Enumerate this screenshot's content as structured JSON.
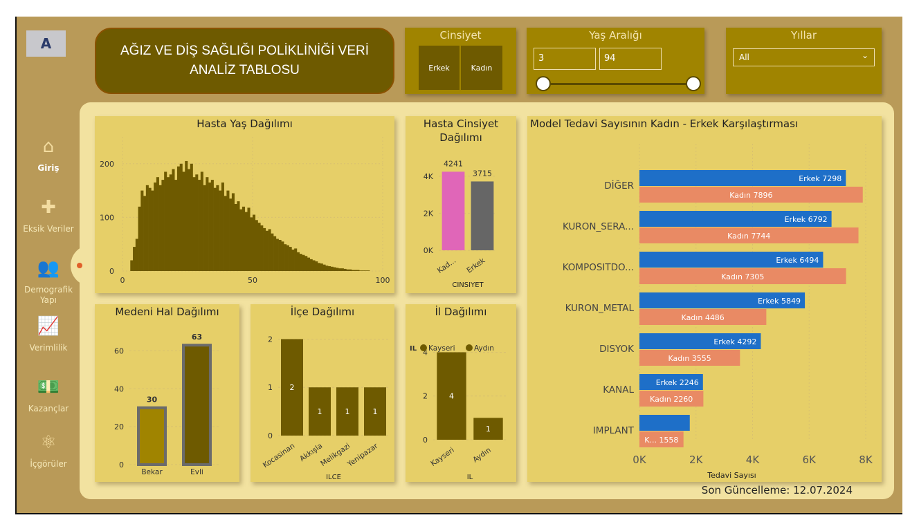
{
  "title": "AĞIZ VE DİŞ SAĞLIĞI POLİKLİNİĞİ VERİ ANALİZ TABLOSU",
  "logo_text": "A",
  "slicers": {
    "gender": {
      "title": "Cinsiyet",
      "options": [
        "Erkek",
        "Kadın"
      ]
    },
    "age": {
      "title": "Yaş Aralığı",
      "min": "3",
      "max": "94"
    },
    "years": {
      "title": "Yıllar",
      "value": "All"
    }
  },
  "nav": [
    {
      "label": "Giriş",
      "icon": "home-icon"
    },
    {
      "label": "Eksik Veriler",
      "icon": "puzzle-icon"
    },
    {
      "label": "Demografik Yapı",
      "icon": "people-icon"
    },
    {
      "label": "Verimlilik",
      "icon": "trend-chart-icon"
    },
    {
      "label": "Kazançlar",
      "icon": "money-icon"
    },
    {
      "label": "İçgörüler",
      "icon": "brain-icon"
    }
  ],
  "last_update": "Son Güncelleme: 12.07.2024",
  "colors": {
    "bar": "#6e5a00",
    "erkek": "#1e6fc8",
    "kadin": "#e98a64",
    "pink": "#e066b8",
    "grey": "#666666"
  },
  "chart_data": [
    {
      "id": "age",
      "type": "bar",
      "title": "Hasta Yaş Dağılımı",
      "xlim": [
        0,
        100
      ],
      "ylim": [
        0,
        250
      ],
      "xticks": [
        "0",
        "50",
        "100"
      ],
      "yticks": [
        "0",
        "100",
        "200"
      ],
      "x_start": 3,
      "values": [
        20,
        45,
        60,
        120,
        150,
        140,
        160,
        155,
        150,
        165,
        175,
        160,
        170,
        185,
        175,
        180,
        190,
        170,
        195,
        200,
        185,
        205,
        190,
        200,
        175,
        180,
        170,
        185,
        160,
        175,
        165,
        170,
        155,
        160,
        150,
        165,
        140,
        150,
        135,
        145,
        125,
        130,
        115,
        120,
        110,
        118,
        100,
        105,
        95,
        90,
        85,
        80,
        75,
        78,
        70,
        65,
        60,
        58,
        55,
        50,
        48,
        45,
        40,
        42,
        35,
        32,
        30,
        28,
        25,
        22,
        20,
        18,
        15,
        14,
        12,
        10,
        9,
        8,
        7,
        6,
        5,
        5,
        4,
        3,
        3,
        2,
        2,
        2,
        1,
        1,
        1,
        1
      ]
    },
    {
      "id": "gender",
      "type": "bar",
      "title": "Hasta Cinsiyet Dağılımı",
      "xlabel": "CINSIYET",
      "categories": [
        "Kad...",
        "Erkek"
      ],
      "values": [
        4241,
        3715
      ],
      "labels": [
        "4241",
        "3715"
      ],
      "ylim": [
        0,
        5000
      ],
      "yticks": [
        "0K",
        "2K",
        "4K"
      ]
    },
    {
      "id": "marital",
      "type": "bar",
      "title": "Medeni Hal Dağılımı",
      "categories": [
        "Bekar",
        "Evli"
      ],
      "values": [
        30,
        63
      ],
      "labels": [
        "30",
        "63"
      ],
      "ylim": [
        0,
        70
      ],
      "yticks": [
        "0",
        "20",
        "40",
        "60"
      ]
    },
    {
      "id": "district",
      "type": "bar",
      "title": "İlçe Dağılımı",
      "xlabel": "ILCE",
      "categories": [
        "Kocasinan",
        "Akkışla",
        "Melikgazi",
        "Yenipazar"
      ],
      "values": [
        2,
        1,
        1,
        1
      ],
      "labels": [
        "2",
        "1",
        "1",
        "1"
      ],
      "ylim": [
        0,
        2.15
      ],
      "yticks": [
        "0",
        "1",
        "2"
      ]
    },
    {
      "id": "province",
      "type": "bar",
      "title": "İl Dağılımı",
      "xlabel": "IL",
      "legend_title": "IL",
      "legend": [
        "Kayseri",
        "Aydın"
      ],
      "categories": [
        "Kayseri",
        "Aydın"
      ],
      "values": [
        4,
        1
      ],
      "labels": [
        "4",
        "1"
      ],
      "ylim": [
        0,
        4.3
      ],
      "yticks": [
        "0",
        "2",
        "4"
      ]
    },
    {
      "id": "treatment",
      "type": "bar-horizontal",
      "title": "Model Tedavi Sayısının Kadın - Erkek Karşılaştırması",
      "xlabel": "Tedavi Sayısı",
      "xlim": [
        0,
        8000
      ],
      "xticks": [
        "0K",
        "2K",
        "4K",
        "6K",
        "8K"
      ],
      "categories": [
        "DİĞER",
        "KURON_SERA...",
        "KOMPOSITDO...",
        "KURON_METAL",
        "DISYOK",
        "KANAL",
        "IMPLANT"
      ],
      "series": [
        {
          "name": "Erkek",
          "values": [
            7298,
            6792,
            6494,
            5849,
            4292,
            2246,
            1780
          ],
          "labels": [
            "Erkek 7298",
            "Erkek 6792",
            "Erkek 6494",
            "Erkek 5849",
            "Erkek 4292",
            "Erkek 2246",
            ""
          ]
        },
        {
          "name": "Kadın",
          "values": [
            7896,
            7744,
            7305,
            4486,
            3555,
            2260,
            1558
          ],
          "labels": [
            "Kadın 7896",
            "Kadın 7744",
            "Kadın 7305",
            "Kadın 4486",
            "Kadın 3555",
            "Kadın 2260",
            "K... 1558"
          ]
        }
      ]
    }
  ]
}
